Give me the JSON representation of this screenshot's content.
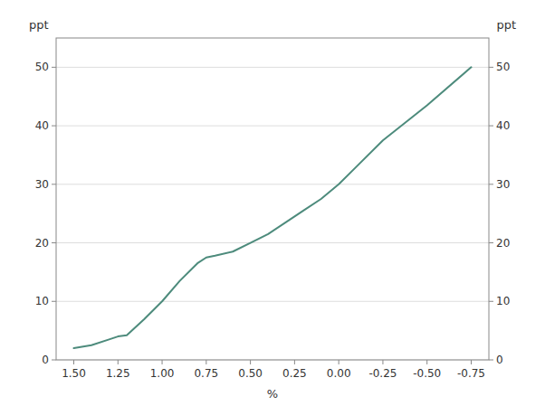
{
  "chart_data": {
    "type": "line",
    "x": [
      1.5,
      1.4,
      1.3,
      1.25,
      1.2,
      1.1,
      1.0,
      0.9,
      0.8,
      0.75,
      0.7,
      0.6,
      0.5,
      0.4,
      0.3,
      0.25,
      0.2,
      0.1,
      0.0,
      -0.1,
      -0.25,
      -0.5,
      -0.75
    ],
    "values": [
      2.0,
      2.5,
      3.5,
      4.0,
      4.2,
      7.0,
      10.0,
      13.5,
      16.5,
      17.5,
      17.8,
      18.5,
      20.0,
      21.5,
      23.5,
      24.5,
      25.5,
      27.5,
      30.0,
      33.0,
      37.5,
      43.5,
      50.0
    ],
    "color": "#4d8b7c",
    "xlabel": "%",
    "ylabel": "ppt",
    "y2label": "ppt",
    "xlim": [
      1.6,
      -0.85
    ],
    "xticks": [
      {
        "value": 1.5,
        "label": "1.50"
      },
      1.25,
      {
        "value": 1,
        "label": "1.00"
      },
      0.75,
      {
        "value": 0.5,
        "label": "0.50"
      },
      0.25,
      {
        "value": 0,
        "label": "0.00"
      },
      -0.25,
      {
        "value": -0.5,
        "label": "-0.50"
      },
      -0.75
    ],
    "ylim": [
      0,
      55
    ],
    "yticks": [
      0,
      10,
      20,
      30,
      40,
      50
    ],
    "y2lim": [
      0,
      55
    ],
    "y2ticks": [
      0,
      10,
      20,
      30,
      40,
      50
    ],
    "grid": true
  }
}
